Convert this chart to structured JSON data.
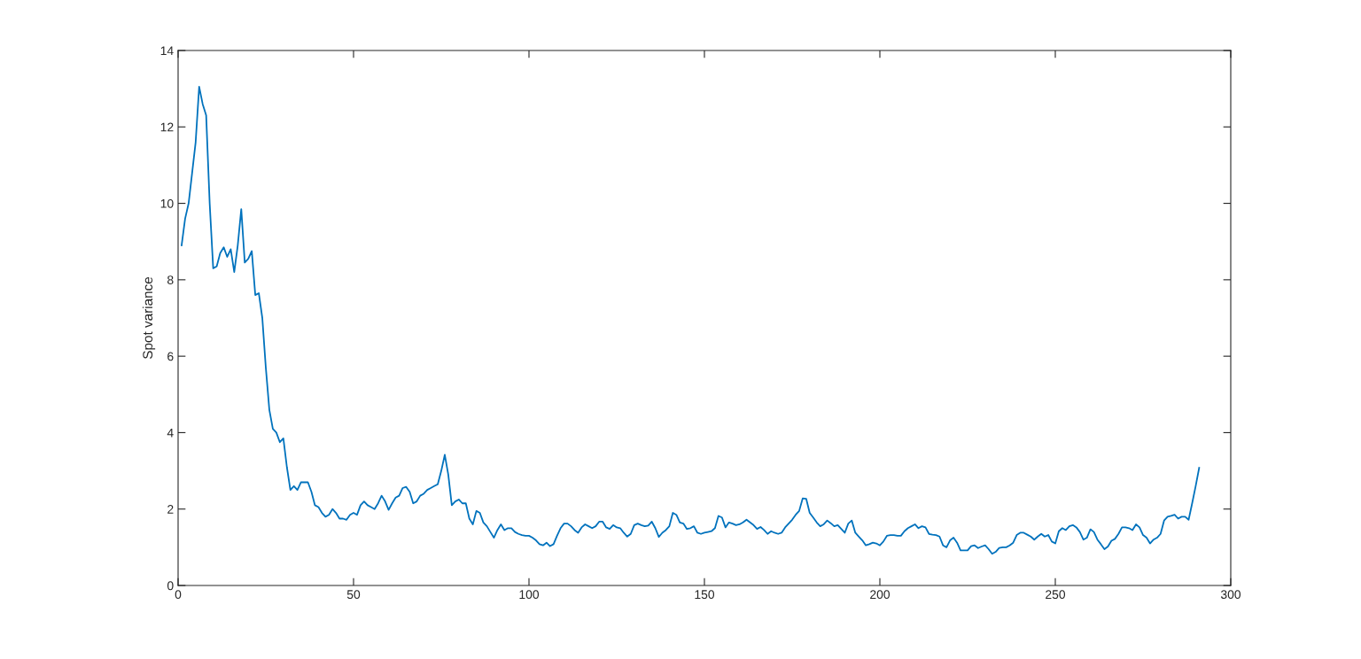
{
  "chart_data": {
    "type": "line",
    "ylabel": "Spot variance",
    "x": [
      1,
      2,
      3,
      4,
      5,
      6,
      7,
      8,
      9,
      10,
      11,
      12,
      13,
      14,
      15,
      16,
      17,
      18,
      19,
      20,
      21,
      22,
      23,
      24,
      25,
      26,
      27,
      28,
      29,
      30,
      31,
      32,
      33,
      34,
      35,
      36,
      37,
      38,
      39,
      40,
      41,
      42,
      43,
      44,
      45,
      46,
      47,
      48,
      49,
      50,
      51,
      52,
      53,
      54,
      55,
      56,
      57,
      58,
      59,
      60,
      61,
      62,
      63,
      64,
      65,
      66,
      67,
      68,
      69,
      70,
      71,
      72,
      73,
      74,
      75,
      76,
      77,
      78,
      79,
      80,
      81,
      82,
      83,
      84,
      85,
      86,
      87,
      88,
      89,
      90,
      91,
      92,
      93,
      94,
      95,
      96,
      97,
      98,
      99,
      100,
      101,
      102,
      103,
      104,
      105,
      106,
      107,
      108,
      109,
      110,
      111,
      112,
      113,
      114,
      115,
      116,
      117,
      118,
      119,
      120,
      121,
      122,
      123,
      124,
      125,
      126,
      127,
      128,
      129,
      130,
      131,
      132,
      133,
      134,
      135,
      136,
      137,
      138,
      139,
      140,
      141,
      142,
      143,
      144,
      145,
      146,
      147,
      148,
      149,
      150,
      151,
      152,
      153,
      154,
      155,
      156,
      157,
      158,
      159,
      160,
      161,
      162,
      163,
      164,
      165,
      166,
      167,
      168,
      169,
      170,
      171,
      172,
      173,
      174,
      175,
      176,
      177,
      178,
      179,
      180,
      181,
      182,
      183,
      184,
      185,
      186,
      187,
      188,
      189,
      190,
      191,
      192,
      193,
      194,
      195,
      196,
      197,
      198,
      199,
      200,
      201,
      202,
      203,
      204,
      205,
      206,
      207,
      208,
      209,
      210,
      211,
      212,
      213,
      214,
      215,
      216,
      217,
      218,
      219,
      220,
      221,
      222,
      223,
      224,
      225,
      226,
      227,
      228,
      229,
      230,
      231,
      232,
      233,
      234,
      235,
      236,
      237,
      238,
      239,
      240,
      241,
      242,
      243,
      244,
      245,
      246,
      247,
      248,
      249,
      250,
      251,
      252,
      253,
      254,
      255,
      256,
      257,
      258,
      259,
      260,
      261,
      262,
      263,
      264,
      265,
      266,
      267,
      268,
      269,
      270,
      271,
      272,
      273,
      274,
      275,
      276,
      277,
      278,
      279,
      280,
      281,
      282,
      283,
      284,
      285,
      286,
      287,
      288,
      289,
      290,
      291
    ],
    "series": [
      {
        "color": "#0072bd",
        "values": [
          8.9,
          9.6,
          10.0,
          10.8,
          11.6,
          13.05,
          12.6,
          12.3,
          10.0,
          8.3,
          8.35,
          8.7,
          8.85,
          8.6,
          8.8,
          8.2,
          8.9,
          9.85,
          8.45,
          8.55,
          8.75,
          7.6,
          7.65,
          7.0,
          5.7,
          4.6,
          4.1,
          4.0,
          3.75,
          3.85,
          3.1,
          2.5,
          2.6,
          2.5,
          2.7,
          2.7,
          2.7,
          2.45,
          2.1,
          2.05,
          1.9,
          1.8,
          1.85,
          2.0,
          1.9,
          1.75,
          1.75,
          1.72,
          1.85,
          1.9,
          1.85,
          2.1,
          2.2,
          2.1,
          2.05,
          2.0,
          2.15,
          2.35,
          2.2,
          1.98,
          2.15,
          2.3,
          2.35,
          2.55,
          2.58,
          2.45,
          2.15,
          2.2,
          2.35,
          2.4,
          2.5,
          2.55,
          2.6,
          2.65,
          3.0,
          3.42,
          2.9,
          2.1,
          2.2,
          2.25,
          2.15,
          2.15,
          1.75,
          1.6,
          1.95,
          1.9,
          1.65,
          1.55,
          1.4,
          1.25,
          1.45,
          1.6,
          1.45,
          1.5,
          1.5,
          1.4,
          1.35,
          1.32,
          1.3,
          1.3,
          1.25,
          1.18,
          1.08,
          1.05,
          1.12,
          1.03,
          1.08,
          1.3,
          1.5,
          1.62,
          1.62,
          1.55,
          1.45,
          1.38,
          1.52,
          1.6,
          1.55,
          1.5,
          1.55,
          1.67,
          1.67,
          1.52,
          1.48,
          1.58,
          1.52,
          1.5,
          1.38,
          1.28,
          1.35,
          1.58,
          1.62,
          1.58,
          1.55,
          1.57,
          1.67,
          1.5,
          1.27,
          1.38,
          1.45,
          1.55,
          1.9,
          1.85,
          1.65,
          1.62,
          1.48,
          1.5,
          1.55,
          1.38,
          1.35,
          1.38,
          1.4,
          1.42,
          1.5,
          1.82,
          1.78,
          1.52,
          1.65,
          1.62,
          1.58,
          1.6,
          1.65,
          1.72,
          1.65,
          1.58,
          1.48,
          1.53,
          1.45,
          1.35,
          1.42,
          1.38,
          1.35,
          1.38,
          1.52,
          1.62,
          1.72,
          1.85,
          1.95,
          2.28,
          2.27,
          1.9,
          1.78,
          1.65,
          1.55,
          1.6,
          1.7,
          1.63,
          1.55,
          1.58,
          1.48,
          1.38,
          1.62,
          1.7,
          1.38,
          1.28,
          1.18,
          1.05,
          1.08,
          1.12,
          1.1,
          1.05,
          1.15,
          1.3,
          1.32,
          1.32,
          1.3,
          1.3,
          1.42,
          1.5,
          1.55,
          1.6,
          1.5,
          1.55,
          1.52,
          1.35,
          1.33,
          1.32,
          1.28,
          1.05,
          1.0,
          1.18,
          1.25,
          1.12,
          0.92,
          0.92,
          0.92,
          1.03,
          1.05,
          0.98,
          1.02,
          1.05,
          0.95,
          0.83,
          0.88,
          0.98,
          1.0,
          1.0,
          1.05,
          1.12,
          1.32,
          1.38,
          1.38,
          1.33,
          1.28,
          1.2,
          1.28,
          1.35,
          1.28,
          1.32,
          1.15,
          1.1,
          1.42,
          1.5,
          1.45,
          1.55,
          1.58,
          1.52,
          1.4,
          1.2,
          1.25,
          1.47,
          1.4,
          1.2,
          1.08,
          0.95,
          1.02,
          1.17,
          1.22,
          1.35,
          1.52,
          1.52,
          1.5,
          1.45,
          1.6,
          1.52,
          1.32,
          1.25,
          1.1,
          1.2,
          1.25,
          1.35,
          1.7,
          1.8,
          1.82,
          1.85,
          1.75,
          1.8,
          1.8,
          1.72,
          2.15,
          2.6,
          3.08
        ]
      }
    ],
    "xlim": [
      0,
      300
    ],
    "xticks": [
      0,
      50,
      100,
      150,
      200,
      250,
      300
    ],
    "ylim": [
      0,
      14
    ],
    "yticks": [
      0,
      2,
      4,
      6,
      8,
      10,
      12,
      14
    ],
    "grid": false,
    "marker": "none",
    "line_style": "solid"
  }
}
